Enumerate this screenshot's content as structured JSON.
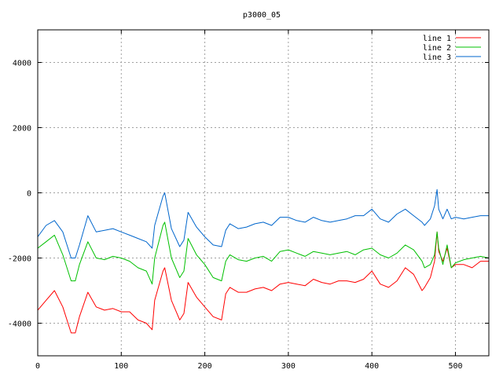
{
  "chart_data": {
    "type": "line",
    "title": "p3000_05",
    "xlabel": "",
    "ylabel": "",
    "xlim": [
      0,
      540
    ],
    "ylim": [
      -5000,
      5000
    ],
    "x_ticks": [
      0,
      100,
      200,
      300,
      400,
      500
    ],
    "y_ticks": [
      -4000,
      -2000,
      0,
      2000,
      4000
    ],
    "grid": true,
    "legend_position": "top-right",
    "series": [
      {
        "name": "line 1",
        "color": "#ff0000",
        "x": [
          0,
          10,
          20,
          30,
          40,
          45,
          50,
          60,
          70,
          80,
          90,
          100,
          110,
          120,
          130,
          137,
          140,
          150,
          152,
          160,
          170,
          175,
          180,
          190,
          200,
          210,
          220,
          225,
          230,
          240,
          250,
          260,
          270,
          280,
          290,
          300,
          310,
          320,
          330,
          340,
          350,
          360,
          370,
          380,
          390,
          400,
          410,
          420,
          430,
          440,
          450,
          460,
          463,
          470,
          475,
          478,
          480,
          485,
          490,
          495,
          500,
          510,
          520,
          530,
          540
        ],
        "y": [
          -3600,
          -3300,
          -3000,
          -3500,
          -4300,
          -4300,
          -3800,
          -3050,
          -3500,
          -3600,
          -3550,
          -3650,
          -3650,
          -3900,
          -4000,
          -4200,
          -3300,
          -2400,
          -2300,
          -3300,
          -3900,
          -3700,
          -2750,
          -3200,
          -3500,
          -3800,
          -3900,
          -3100,
          -2900,
          -3050,
          -3050,
          -2950,
          -2900,
          -3000,
          -2800,
          -2750,
          -2800,
          -2850,
          -2650,
          -2750,
          -2800,
          -2700,
          -2700,
          -2750,
          -2650,
          -2400,
          -2800,
          -2900,
          -2700,
          -2300,
          -2500,
          -3000,
          -2900,
          -2600,
          -2100,
          -1200,
          -1800,
          -2100,
          -1700,
          -2300,
          -2200,
          -2200,
          -2300,
          -2100,
          -2100
        ]
      },
      {
        "name": "line 2",
        "color": "#00c000",
        "x": [
          0,
          10,
          20,
          30,
          40,
          45,
          50,
          60,
          70,
          80,
          90,
          100,
          110,
          120,
          130,
          137,
          140,
          150,
          152,
          160,
          170,
          175,
          180,
          190,
          200,
          210,
          220,
          225,
          230,
          240,
          250,
          260,
          270,
          280,
          290,
          300,
          310,
          320,
          330,
          340,
          350,
          360,
          370,
          380,
          390,
          400,
          410,
          420,
          430,
          440,
          450,
          460,
          463,
          470,
          475,
          478,
          480,
          485,
          490,
          495,
          500,
          510,
          520,
          530,
          540
        ],
        "y": [
          -1700,
          -1500,
          -1300,
          -1900,
          -2700,
          -2700,
          -2200,
          -1500,
          -2000,
          -2050,
          -1950,
          -2000,
          -2100,
          -2300,
          -2400,
          -2800,
          -2000,
          -1000,
          -900,
          -2000,
          -2600,
          -2400,
          -1400,
          -1900,
          -2200,
          -2600,
          -2700,
          -2100,
          -1900,
          -2050,
          -2100,
          -2000,
          -1950,
          -2100,
          -1800,
          -1750,
          -1850,
          -1950,
          -1800,
          -1850,
          -1900,
          -1850,
          -1800,
          -1900,
          -1750,
          -1700,
          -1900,
          -2000,
          -1850,
          -1600,
          -1750,
          -2100,
          -2300,
          -2200,
          -1900,
          -1200,
          -1700,
          -2200,
          -1600,
          -2300,
          -2150,
          -2050,
          -2000,
          -1950,
          -2000
        ]
      },
      {
        "name": "line 3",
        "color": "#0066cc",
        "x": [
          0,
          10,
          20,
          30,
          40,
          45,
          50,
          60,
          70,
          80,
          90,
          100,
          110,
          120,
          130,
          137,
          140,
          150,
          152,
          160,
          170,
          175,
          180,
          190,
          200,
          210,
          220,
          225,
          230,
          240,
          250,
          260,
          270,
          280,
          290,
          300,
          310,
          320,
          330,
          340,
          350,
          360,
          370,
          380,
          390,
          400,
          410,
          420,
          430,
          440,
          450,
          460,
          463,
          470,
          475,
          478,
          480,
          485,
          490,
          495,
          500,
          510,
          520,
          530,
          540
        ],
        "y": [
          -1350,
          -1000,
          -850,
          -1200,
          -2000,
          -2000,
          -1600,
          -700,
          -1200,
          -1150,
          -1100,
          -1200,
          -1300,
          -1400,
          -1500,
          -1700,
          -1000,
          -100,
          0,
          -1100,
          -1650,
          -1450,
          -600,
          -1050,
          -1350,
          -1600,
          -1650,
          -1150,
          -950,
          -1100,
          -1050,
          -950,
          -900,
          -1000,
          -750,
          -750,
          -850,
          -900,
          -750,
          -850,
          -900,
          -850,
          -800,
          -700,
          -700,
          -500,
          -800,
          -900,
          -650,
          -500,
          -700,
          -900,
          -1000,
          -800,
          -400,
          100,
          -500,
          -800,
          -500,
          -800,
          -750,
          -800,
          -750,
          -700,
          -700
        ]
      }
    ]
  }
}
